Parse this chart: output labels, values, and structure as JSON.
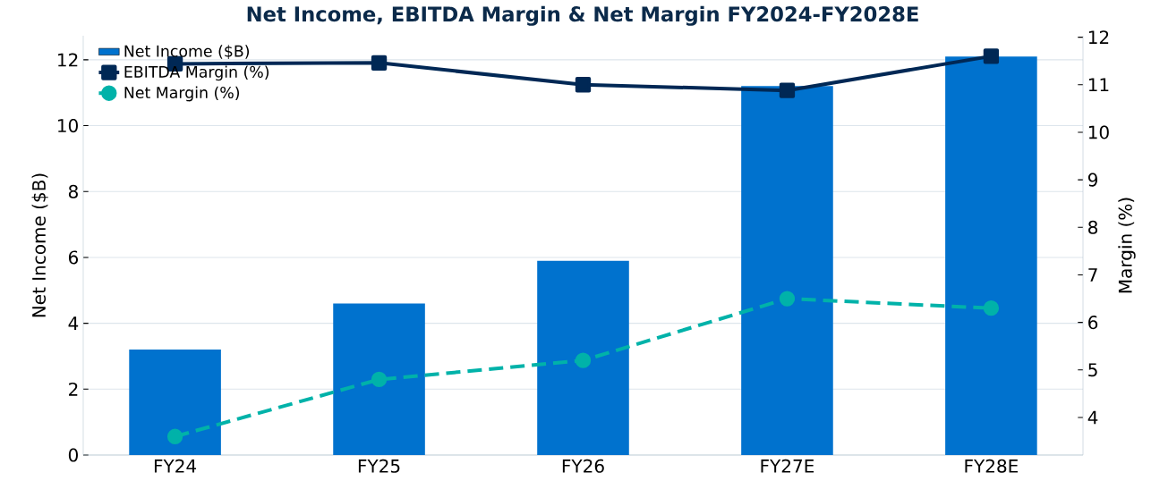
{
  "chart_data": {
    "type": "bar",
    "title": "Net Income, EBITDA Margin & Net Margin FY2024-FY2028E",
    "categories": [
      "FY24",
      "FY25",
      "FY26",
      "FY27E",
      "FY28E"
    ],
    "ylabel": "Net Income ($B)",
    "y2label": "Margin (%)",
    "ylim": [
      0,
      12.73
    ],
    "yticks": [
      0,
      2,
      4,
      6,
      8,
      10,
      12
    ],
    "y2lim": [
      3.21,
      12.03
    ],
    "y2ticks": [
      4,
      5,
      6,
      7,
      8,
      9,
      10,
      11,
      12
    ],
    "grid": "y",
    "legend": "top left",
    "series": [
      {
        "name": "Net Income ($B)",
        "color": "#0072ce",
        "values": [
          3.2,
          4.6,
          5.9,
          11.2,
          12.1
        ]
      },
      {
        "name": "EBITDA Margin (%)",
        "type": "line",
        "axis": "y2",
        "color": "#002855",
        "marker": "square",
        "line_style": "solid",
        "values": [
          11.44,
          11.46,
          11.0,
          10.88,
          11.6
        ]
      },
      {
        "name": "Net Margin (%)",
        "type": "line",
        "axis": "y2",
        "color": "#00b2a9",
        "marker": "circle",
        "line_style": "dashed",
        "values": [
          3.6,
          4.8,
          5.2,
          6.5,
          6.3
        ]
      }
    ]
  }
}
